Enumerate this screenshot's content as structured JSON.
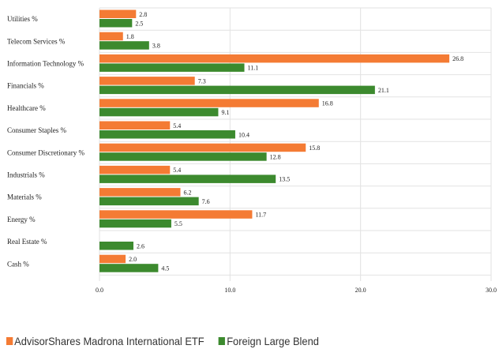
{
  "chart_data": {
    "type": "bar",
    "orientation": "horizontal",
    "categories": [
      "Utilities %",
      "Telecom Services %",
      "Information Technology %",
      "Financials %",
      "Healthcare %",
      "Consumer Staples %",
      "Consumer Discretionary %",
      "Industrials %",
      "Materials %",
      "Energy %",
      "Real Estate %",
      "Cash %"
    ],
    "series": [
      {
        "name": "AdvisorShares Madrona International ETF",
        "color": "#F47B34",
        "values": [
          2.8,
          1.8,
          26.8,
          7.3,
          16.8,
          5.4,
          15.8,
          5.4,
          6.2,
          11.7,
          null,
          2.0
        ],
        "labels": [
          "2.8",
          "1.8",
          "26.8",
          "7.3",
          "16.8",
          "5.4",
          "15.8",
          "5.4",
          "6.2",
          "11.7",
          "",
          "2.0"
        ]
      },
      {
        "name": "Foreign Large Blend",
        "color": "#3C8A2E",
        "values": [
          2.5,
          3.8,
          11.1,
          21.1,
          9.1,
          10.4,
          12.8,
          13.5,
          7.6,
          5.5,
          2.6,
          4.5
        ],
        "labels": [
          "2.5",
          "3.8",
          "11.1",
          "21.1",
          "9.1",
          "10.4",
          "12.8",
          "13.5",
          "7.6",
          "5.5",
          "2.6",
          "4.5"
        ]
      }
    ],
    "xlim": [
      0,
      30
    ],
    "xticks": [
      "0.0",
      "10.0",
      "20.0",
      "30.0"
    ],
    "grid": true,
    "legend_position": "bottom-left"
  }
}
